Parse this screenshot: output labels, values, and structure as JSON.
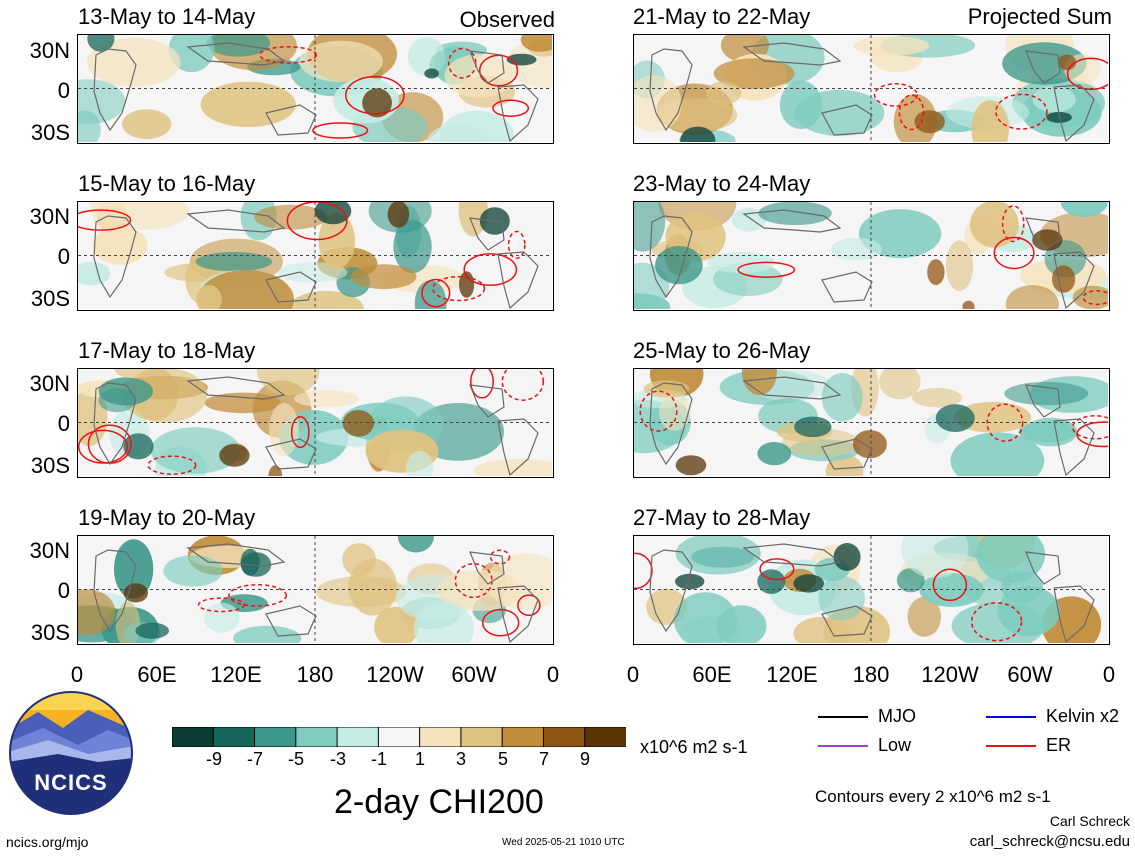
{
  "headers": {
    "observed": "Observed",
    "projected": "Projected Sum"
  },
  "panels": [
    {
      "label": "13-May to 14-May",
      "column": "observed"
    },
    {
      "label": "15-May to 16-May",
      "column": "observed"
    },
    {
      "label": "17-May to 18-May",
      "column": "observed"
    },
    {
      "label": "19-May to 20-May",
      "column": "observed"
    },
    {
      "label": "21-May to 22-May",
      "column": "projected"
    },
    {
      "label": "23-May to 24-May",
      "column": "projected"
    },
    {
      "label": "25-May to 26-May",
      "column": "projected"
    },
    {
      "label": "27-May to 28-May",
      "column": "projected"
    }
  ],
  "lat_ticks": [
    "30N",
    "0",
    "30S"
  ],
  "lon_ticks": [
    "0",
    "60E",
    "120E",
    "180",
    "120W",
    "60W",
    "0"
  ],
  "colorbar": {
    "colors": [
      "#0b3d35",
      "#17665c",
      "#3c978b",
      "#7ecbbf",
      "#c6ebe4",
      "#f5f5f5",
      "#f5e3bd",
      "#dfc280",
      "#c18d3b",
      "#8f5513",
      "#5a3307"
    ],
    "labels": [
      "-9",
      "-7",
      "-5",
      "-3",
      "-1",
      "1",
      "3",
      "5",
      "7",
      "9"
    ],
    "units": "x10^6 m2 s-1"
  },
  "legend": [
    {
      "name": "MJO",
      "color": "#000000"
    },
    {
      "name": "Kelvin x2",
      "color": "#0000ee"
    },
    {
      "name": "Low",
      "color": "#9d40d8"
    },
    {
      "name": "ER",
      "color": "#ee1111"
    }
  ],
  "main_title": "2-day CHI200",
  "contour_note": "Contours every 2 x10^6 m2 s-1",
  "author": "Carl Schreck",
  "email": "carl_schreck@ncsu.edu",
  "website": "ncics.org/mjo",
  "timestamp": "Wed 2025-05-21 1010 UTC",
  "logo_text": "NCICS"
}
